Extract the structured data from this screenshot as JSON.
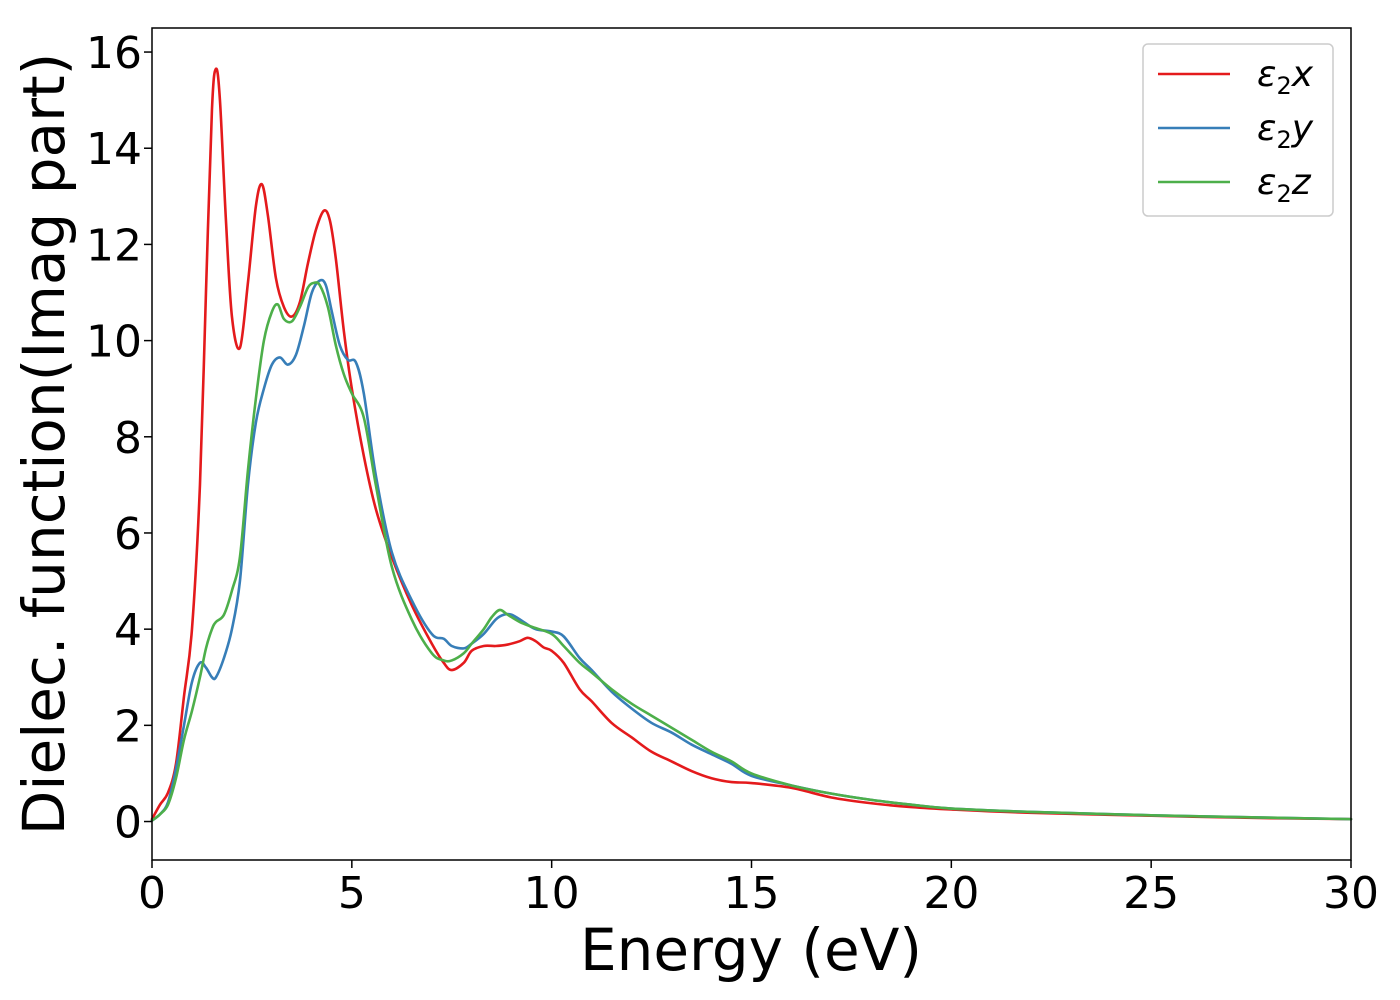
{
  "chart_data": {
    "type": "line",
    "xlabel": "Energy (eV)",
    "ylabel": "Dielec. function(Imag part)",
    "xlim": [
      0,
      30
    ],
    "ylim": [
      -0.8,
      16.5
    ],
    "xticks": [
      0,
      5,
      10,
      15,
      20,
      25,
      30
    ],
    "yticks": [
      0,
      2,
      4,
      6,
      8,
      10,
      12,
      14,
      16
    ],
    "grid": false,
    "legend_placement": "top-right",
    "series": [
      {
        "name": "ε2x",
        "legend": {
          "base": "ε",
          "sub": "2",
          "suffix": "x"
        },
        "color": "#e41a1c",
        "x": [
          0,
          0.2,
          0.4,
          0.6,
          0.8,
          1.0,
          1.2,
          1.35,
          1.5,
          1.6,
          1.7,
          1.85,
          2.0,
          2.2,
          2.4,
          2.6,
          2.75,
          2.9,
          3.1,
          3.3,
          3.5,
          3.7,
          3.9,
          4.1,
          4.3,
          4.45,
          4.6,
          4.8,
          5.0,
          5.3,
          5.6,
          6.0,
          6.5,
          7.0,
          7.3,
          7.5,
          7.8,
          8.0,
          8.3,
          8.6,
          8.9,
          9.2,
          9.4,
          9.6,
          9.8,
          10.0,
          10.3,
          10.7,
          11.0,
          11.5,
          12.0,
          12.5,
          13.0,
          13.5,
          14.0,
          14.5,
          15.0,
          16.0,
          17.0,
          18.0,
          19.0,
          20.0,
          22.0,
          25.0,
          28.0,
          30.0
        ],
        "y": [
          0.05,
          0.35,
          0.6,
          1.2,
          2.6,
          4.0,
          7.0,
          11.0,
          14.8,
          15.65,
          15.0,
          12.5,
          10.5,
          9.85,
          11.2,
          12.8,
          13.25,
          12.6,
          11.3,
          10.7,
          10.5,
          10.8,
          11.6,
          12.3,
          12.7,
          12.5,
          11.7,
          10.2,
          9.0,
          7.6,
          6.5,
          5.5,
          4.5,
          3.7,
          3.3,
          3.15,
          3.3,
          3.55,
          3.65,
          3.65,
          3.68,
          3.75,
          3.82,
          3.75,
          3.62,
          3.55,
          3.3,
          2.75,
          2.5,
          2.05,
          1.75,
          1.45,
          1.25,
          1.05,
          0.9,
          0.82,
          0.8,
          0.7,
          0.5,
          0.38,
          0.3,
          0.25,
          0.18,
          0.12,
          0.07,
          0.05
        ]
      },
      {
        "name": "ε2y",
        "legend": {
          "base": "ε",
          "sub": "2",
          "suffix": "y"
        },
        "color": "#377eb8",
        "x": [
          0,
          0.2,
          0.4,
          0.6,
          0.8,
          1.0,
          1.2,
          1.35,
          1.5,
          1.6,
          1.8,
          2.0,
          2.2,
          2.4,
          2.6,
          2.8,
          3.0,
          3.2,
          3.4,
          3.6,
          3.8,
          4.0,
          4.2,
          4.35,
          4.5,
          4.7,
          4.9,
          5.1,
          5.3,
          5.6,
          6.0,
          6.5,
          7.0,
          7.3,
          7.5,
          7.8,
          8.0,
          8.3,
          8.6,
          8.8,
          9.0,
          9.3,
          9.6,
          10.0,
          10.3,
          10.7,
          11.0,
          11.5,
          12.0,
          12.5,
          13.0,
          13.5,
          14.0,
          14.5,
          15.0,
          16.0,
          17.0,
          18.0,
          19.0,
          20.0,
          22.0,
          25.0,
          28.0,
          30.0
        ],
        "y": [
          0.02,
          0.15,
          0.4,
          1.1,
          2.0,
          2.9,
          3.3,
          3.2,
          3.0,
          3.0,
          3.4,
          4.0,
          5.0,
          7.0,
          8.3,
          9.0,
          9.5,
          9.65,
          9.5,
          9.7,
          10.3,
          11.0,
          11.25,
          11.15,
          10.6,
          9.9,
          9.6,
          9.55,
          8.9,
          7.2,
          5.6,
          4.6,
          3.9,
          3.8,
          3.65,
          3.6,
          3.7,
          3.9,
          4.2,
          4.3,
          4.3,
          4.15,
          4.0,
          3.95,
          3.85,
          3.4,
          3.15,
          2.7,
          2.35,
          2.05,
          1.85,
          1.6,
          1.4,
          1.2,
          0.95,
          0.75,
          0.58,
          0.45,
          0.35,
          0.27,
          0.2,
          0.13,
          0.08,
          0.05
        ]
      },
      {
        "name": "ε2z",
        "legend": {
          "base": "ε",
          "sub": "2",
          "suffix": "z"
        },
        "color": "#4daf4a",
        "x": [
          0,
          0.2,
          0.4,
          0.6,
          0.8,
          1.0,
          1.2,
          1.35,
          1.5,
          1.6,
          1.8,
          2.0,
          2.2,
          2.4,
          2.6,
          2.8,
          3.0,
          3.15,
          3.3,
          3.5,
          3.7,
          3.9,
          4.05,
          4.2,
          4.4,
          4.6,
          4.8,
          5.0,
          5.3,
          5.6,
          6.0,
          6.5,
          7.0,
          7.3,
          7.5,
          7.8,
          8.0,
          8.3,
          8.5,
          8.7,
          8.9,
          9.2,
          9.5,
          10.0,
          10.3,
          10.7,
          11.0,
          11.5,
          12.0,
          12.5,
          13.0,
          13.5,
          14.0,
          14.5,
          15.0,
          16.0,
          17.0,
          18.0,
          19.0,
          20.0,
          22.0,
          25.0,
          28.0,
          30.0
        ],
        "y": [
          0.02,
          0.15,
          0.35,
          0.9,
          1.7,
          2.3,
          3.0,
          3.6,
          4.0,
          4.15,
          4.3,
          4.8,
          5.5,
          7.3,
          8.8,
          10.0,
          10.6,
          10.75,
          10.45,
          10.4,
          10.7,
          11.1,
          11.2,
          11.15,
          10.7,
          9.9,
          9.3,
          8.9,
          8.4,
          7.0,
          5.3,
          4.2,
          3.5,
          3.35,
          3.35,
          3.5,
          3.7,
          4.0,
          4.25,
          4.4,
          4.3,
          4.15,
          4.05,
          3.9,
          3.65,
          3.3,
          3.1,
          2.75,
          2.45,
          2.2,
          1.95,
          1.7,
          1.45,
          1.25,
          1.0,
          0.75,
          0.58,
          0.45,
          0.35,
          0.27,
          0.2,
          0.13,
          0.08,
          0.05
        ]
      }
    ]
  }
}
